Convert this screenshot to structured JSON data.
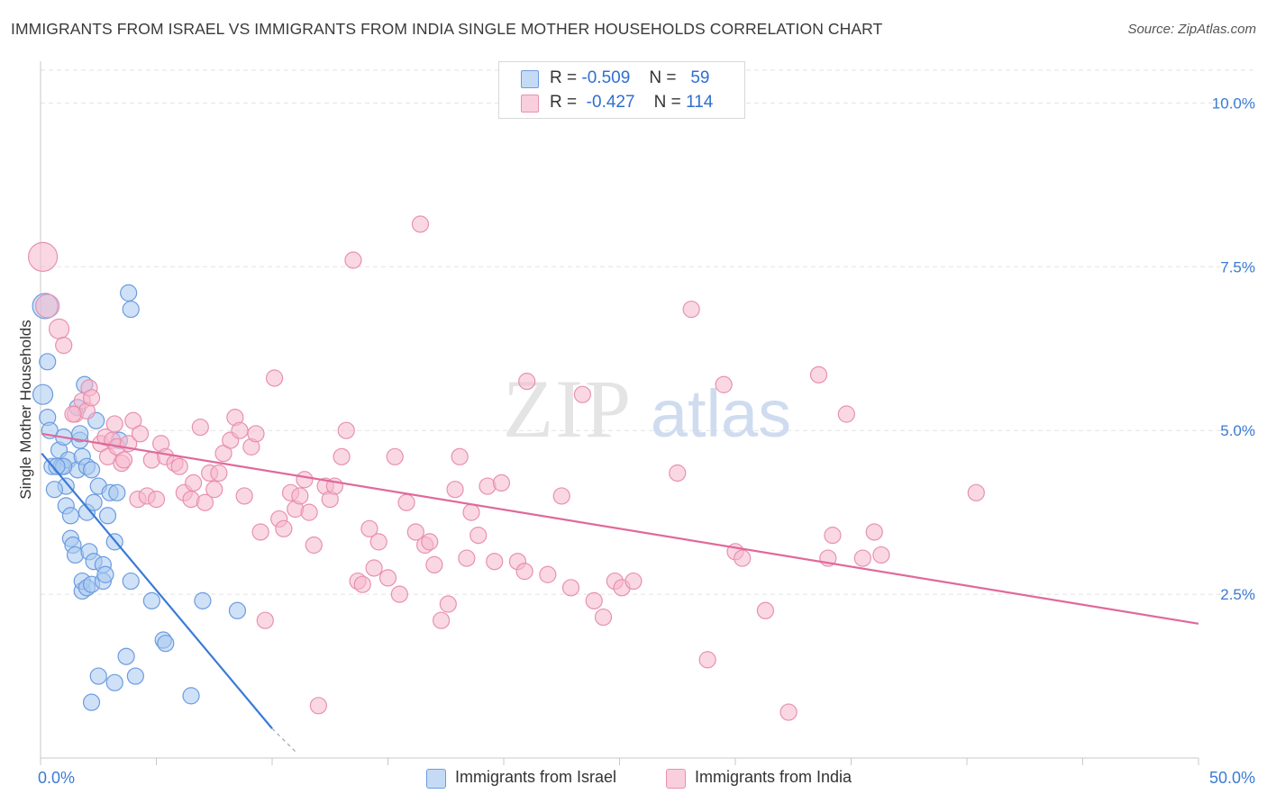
{
  "title": "IMMIGRANTS FROM ISRAEL VS IMMIGRANTS FROM INDIA SINGLE MOTHER HOUSEHOLDS CORRELATION CHART",
  "source": "Source: ZipAtlas.com",
  "watermark": {
    "zip": "ZIP",
    "atlas": "atlas"
  },
  "legend_top": {
    "rows": [
      {
        "r_label": "R =",
        "r_value": "-0.509",
        "n_label": "N =",
        "n_value": "59",
        "color": "#a8c8f0"
      },
      {
        "r_label": "R =",
        "r_value": "-0.427",
        "n_label": "N =",
        "n_value": "114",
        "color": "#f5b8cc"
      }
    ]
  },
  "chart_data": {
    "type": "scatter",
    "title": "IMMIGRANTS FROM ISRAEL VS IMMIGRANTS FROM INDIA SINGLE MOTHER HOUSEHOLDS CORRELATION CHART",
    "xlabel": "",
    "ylabel": "Single Mother Households",
    "xlim": [
      0,
      50
    ],
    "ylim": [
      0,
      10.5
    ],
    "x_tick_labels": [
      "0.0%",
      "50.0%"
    ],
    "y_ticks": [
      2.5,
      5.0,
      7.5,
      10.0
    ],
    "y_tick_labels": [
      "2.5%",
      "5.0%",
      "7.5%",
      "10.0%"
    ],
    "grid": true,
    "legend_position": "bottom",
    "series": [
      {
        "name": "Immigrants from Israel",
        "color": "#6b9be0",
        "fill": "#a8c8f0",
        "trend": {
          "x": [
            0.05,
            10.0
          ],
          "y": [
            4.65,
            0.45
          ],
          "dashed_to": [
            11.0,
            0.1
          ],
          "color": "#3a7bd5"
        },
        "points": [
          [
            0.2,
            6.9,
            14
          ],
          [
            0.1,
            5.55,
            11
          ],
          [
            0.3,
            5.2,
            9
          ],
          [
            0.3,
            6.05,
            9
          ],
          [
            0.4,
            5.0,
            9
          ],
          [
            0.5,
            4.45,
            9
          ],
          [
            0.8,
            4.7,
            9
          ],
          [
            0.9,
            4.45,
            9
          ],
          [
            1.0,
            4.9,
            9
          ],
          [
            1.1,
            4.15,
            9
          ],
          [
            1.2,
            4.55,
            9
          ],
          [
            1.1,
            3.85,
            9
          ],
          [
            1.3,
            3.7,
            9
          ],
          [
            1.3,
            3.35,
            9
          ],
          [
            1.4,
            3.25,
            9
          ],
          [
            1.5,
            3.1,
            9
          ],
          [
            1.6,
            5.35,
            9
          ],
          [
            1.6,
            4.4,
            9
          ],
          [
            1.7,
            4.85,
            9
          ],
          [
            1.8,
            2.55,
            9
          ],
          [
            1.8,
            2.7,
            9
          ],
          [
            1.7,
            4.95,
            9
          ],
          [
            1.8,
            4.6,
            9
          ],
          [
            1.9,
            5.7,
            9
          ],
          [
            2.0,
            2.6,
            9
          ],
          [
            2.0,
            3.75,
            9
          ],
          [
            2.1,
            3.15,
            9
          ],
          [
            2.0,
            4.45,
            9
          ],
          [
            2.2,
            2.65,
            9
          ],
          [
            2.2,
            0.85,
            9
          ],
          [
            2.2,
            4.4,
            9
          ],
          [
            2.3,
            3.9,
            9
          ],
          [
            2.3,
            3.0,
            9
          ],
          [
            2.5,
            4.15,
            9
          ],
          [
            2.4,
            5.15,
            9
          ],
          [
            2.5,
            1.25,
            9
          ],
          [
            2.7,
            2.7,
            9
          ],
          [
            2.7,
            2.95,
            9
          ],
          [
            2.8,
            2.8,
            9
          ],
          [
            2.9,
            3.7,
            9
          ],
          [
            3.0,
            4.05,
            9
          ],
          [
            3.2,
            3.3,
            9
          ],
          [
            3.2,
            1.15,
            9
          ],
          [
            3.3,
            4.05,
            9
          ],
          [
            3.4,
            4.85,
            9
          ],
          [
            3.7,
            1.55,
            9
          ],
          [
            3.8,
            7.1,
            9
          ],
          [
            3.9,
            6.85,
            9
          ],
          [
            3.9,
            2.7,
            9
          ],
          [
            4.1,
            1.25,
            9
          ],
          [
            4.8,
            2.4,
            9
          ],
          [
            5.3,
            1.8,
            9
          ],
          [
            5.4,
            1.75,
            9
          ],
          [
            6.5,
            0.95,
            9
          ],
          [
            7.0,
            2.4,
            9
          ],
          [
            8.5,
            2.25,
            9
          ],
          [
            0.6,
            4.1,
            9
          ],
          [
            1.0,
            4.45,
            9
          ],
          [
            0.7,
            4.45,
            9
          ]
        ]
      },
      {
        "name": "Immigrants from India",
        "color": "#e890b0",
        "fill": "#f5b8cc",
        "trend": {
          "x": [
            0.05,
            50.0
          ],
          "y": [
            4.95,
            2.05
          ],
          "color": "#e0699a"
        },
        "points": [
          [
            0.1,
            7.65,
            16
          ],
          [
            0.3,
            6.9,
            13
          ],
          [
            0.8,
            6.55,
            11
          ],
          [
            1.0,
            6.3,
            9
          ],
          [
            1.5,
            5.25,
            9
          ],
          [
            1.8,
            5.45,
            9
          ],
          [
            2.0,
            5.3,
            9
          ],
          [
            2.1,
            5.65,
            9
          ],
          [
            2.2,
            5.5,
            9
          ],
          [
            2.6,
            4.8,
            9
          ],
          [
            2.8,
            4.9,
            9
          ],
          [
            2.9,
            4.6,
            9
          ],
          [
            3.1,
            4.85,
            9
          ],
          [
            3.2,
            5.1,
            9
          ],
          [
            3.3,
            4.75,
            9
          ],
          [
            3.5,
            4.5,
            9
          ],
          [
            3.6,
            4.55,
            9
          ],
          [
            3.8,
            4.8,
            9
          ],
          [
            4.0,
            5.15,
            9
          ],
          [
            4.2,
            3.95,
            9
          ],
          [
            4.3,
            4.95,
            9
          ],
          [
            4.6,
            4.0,
            9
          ],
          [
            4.8,
            4.55,
            9
          ],
          [
            5.0,
            3.95,
            9
          ],
          [
            5.2,
            4.8,
            9
          ],
          [
            5.4,
            4.6,
            9
          ],
          [
            5.8,
            4.5,
            9
          ],
          [
            6.0,
            4.45,
            9
          ],
          [
            6.2,
            4.05,
            9
          ],
          [
            6.5,
            3.95,
            9
          ],
          [
            6.6,
            4.2,
            9
          ],
          [
            6.9,
            5.05,
            9
          ],
          [
            7.1,
            3.9,
            9
          ],
          [
            7.3,
            4.35,
            9
          ],
          [
            7.5,
            4.1,
            9
          ],
          [
            7.7,
            4.35,
            9
          ],
          [
            7.9,
            4.65,
            9
          ],
          [
            8.2,
            4.85,
            9
          ],
          [
            8.4,
            5.2,
            9
          ],
          [
            8.6,
            5.0,
            9
          ],
          [
            8.8,
            4.0,
            9
          ],
          [
            9.1,
            4.75,
            9
          ],
          [
            9.3,
            4.95,
            9
          ],
          [
            9.5,
            3.45,
            9
          ],
          [
            9.7,
            2.1,
            9
          ],
          [
            10.1,
            5.8,
            9
          ],
          [
            10.3,
            3.65,
            9
          ],
          [
            10.5,
            3.5,
            9
          ],
          [
            10.8,
            4.05,
            9
          ],
          [
            11.0,
            3.8,
            9
          ],
          [
            11.2,
            4.0,
            9
          ],
          [
            11.4,
            4.25,
            9
          ],
          [
            11.6,
            3.75,
            9
          ],
          [
            11.8,
            3.25,
            9
          ],
          [
            12.0,
            0.8,
            9
          ],
          [
            12.3,
            4.15,
            9
          ],
          [
            12.5,
            3.95,
            9
          ],
          [
            12.7,
            4.15,
            9
          ],
          [
            13.0,
            4.6,
            9
          ],
          [
            13.2,
            5.0,
            9
          ],
          [
            13.5,
            7.6,
            9
          ],
          [
            13.7,
            2.7,
            9
          ],
          [
            13.9,
            2.65,
            9
          ],
          [
            14.2,
            3.5,
            9
          ],
          [
            14.4,
            2.9,
            9
          ],
          [
            14.6,
            3.3,
            9
          ],
          [
            15.0,
            2.75,
            9
          ],
          [
            15.3,
            4.6,
            9
          ],
          [
            15.5,
            2.5,
            9
          ],
          [
            15.8,
            3.9,
            9
          ],
          [
            16.2,
            3.45,
            9
          ],
          [
            16.4,
            8.15,
            9
          ],
          [
            16.6,
            3.25,
            9
          ],
          [
            16.8,
            3.3,
            9
          ],
          [
            17.0,
            2.95,
            9
          ],
          [
            17.3,
            2.1,
            9
          ],
          [
            17.6,
            2.35,
            9
          ],
          [
            17.9,
            4.1,
            9
          ],
          [
            18.1,
            4.6,
            9
          ],
          [
            18.4,
            3.05,
            9
          ],
          [
            18.6,
            3.75,
            9
          ],
          [
            18.9,
            3.4,
            9
          ],
          [
            19.3,
            4.15,
            9
          ],
          [
            19.6,
            3.0,
            9
          ],
          [
            19.9,
            4.2,
            9
          ],
          [
            20.6,
            3.0,
            9
          ],
          [
            20.9,
            2.85,
            9
          ],
          [
            21.0,
            5.75,
            9
          ],
          [
            21.9,
            2.8,
            9
          ],
          [
            22.5,
            4.0,
            9
          ],
          [
            22.9,
            2.6,
            9
          ],
          [
            23.4,
            5.55,
            9
          ],
          [
            23.9,
            2.4,
            9
          ],
          [
            24.3,
            2.15,
            9
          ],
          [
            24.8,
            2.7,
            9
          ],
          [
            25.1,
            2.6,
            9
          ],
          [
            25.6,
            2.7,
            9
          ],
          [
            27.5,
            4.35,
            9
          ],
          [
            28.1,
            6.85,
            9
          ],
          [
            28.8,
            1.5,
            9
          ],
          [
            29.5,
            5.7,
            9
          ],
          [
            30.0,
            3.15,
            9
          ],
          [
            30.3,
            3.05,
            9
          ],
          [
            31.3,
            2.25,
            9
          ],
          [
            32.3,
            0.7,
            9
          ],
          [
            33.6,
            5.85,
            9
          ],
          [
            34.0,
            3.05,
            9
          ],
          [
            34.2,
            3.4,
            9
          ],
          [
            34.8,
            5.25,
            9
          ],
          [
            35.5,
            3.05,
            9
          ],
          [
            36.0,
            3.45,
            9
          ],
          [
            36.3,
            3.1,
            9
          ],
          [
            40.4,
            4.05,
            9
          ],
          [
            1.4,
            5.25,
            9
          ]
        ]
      }
    ]
  }
}
